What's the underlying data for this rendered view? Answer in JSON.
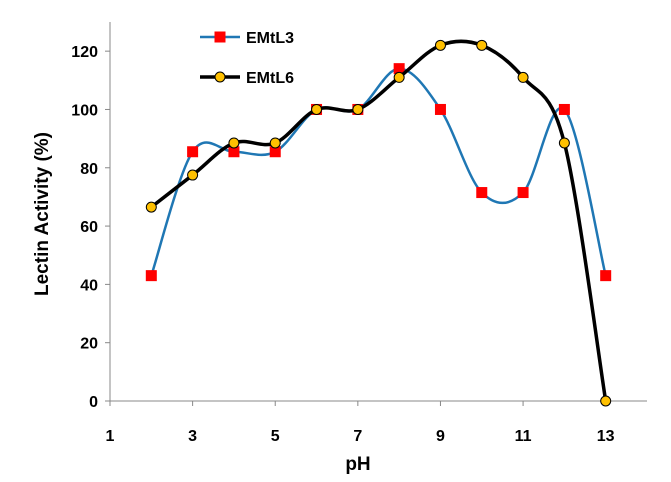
{
  "chart_data": {
    "type": "line",
    "xlabel": "pH",
    "ylabel": "Lectin Activity (%)",
    "xlim": [
      1,
      14
    ],
    "ylim": [
      0,
      130
    ],
    "x_ticks": [
      1,
      3,
      5,
      7,
      9,
      11,
      13
    ],
    "y_ticks": [
      0,
      20,
      40,
      60,
      80,
      100,
      120
    ],
    "grid": false,
    "legend": "top-left",
    "x": [
      2,
      3,
      4,
      5,
      6,
      7,
      8,
      9,
      10,
      11,
      12,
      13
    ],
    "series": [
      {
        "name": "EMtL3",
        "color": "#1F77B4",
        "marker": "square",
        "marker_color": "#FF0000",
        "values": [
          43,
          85.5,
          85.5,
          85.5,
          100,
          100,
          114,
          100,
          71.5,
          71.5,
          100,
          43
        ]
      },
      {
        "name": "EMtL6",
        "color": "#000000",
        "marker": "circle",
        "marker_color": "#FFC000",
        "values": [
          66.5,
          77.5,
          88.5,
          88.5,
          100,
          100,
          111,
          122,
          122,
          111,
          88.5,
          0
        ]
      }
    ]
  }
}
